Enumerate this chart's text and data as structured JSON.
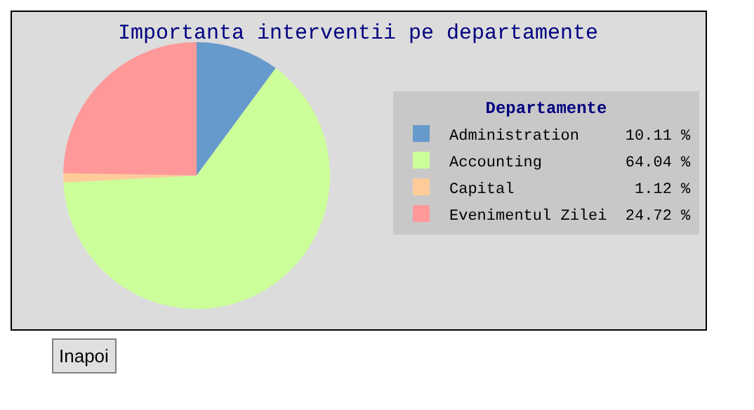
{
  "chart_data": {
    "type": "pie",
    "title": "Importanta interventii pe departamente",
    "legend_title": "Departamente",
    "legend": "right",
    "categories": [
      "Administration",
      "Accounting",
      "Capital",
      "Evenimentul Zilei"
    ],
    "values": [
      10.11,
      64.04,
      1.12,
      24.72
    ],
    "value_labels": [
      "10.11 %",
      "64.04 %",
      "1.12 %",
      "24.72 %"
    ],
    "colors": [
      "#6699cc",
      "#ccff99",
      "#ffcc99",
      "#ff9999"
    ],
    "annotations": [
      "Inapoi"
    ]
  }
}
